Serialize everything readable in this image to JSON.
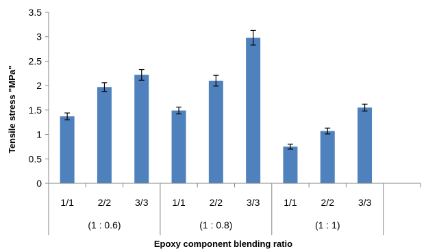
{
  "chart_data": {
    "type": "bar",
    "title": "",
    "xlabel": "Epoxy component blending ratio",
    "ylabel": "Tensile stress \"MPa\"",
    "ylim": [
      0,
      3.5
    ],
    "yticks": [
      "0",
      "0.5",
      "1",
      "1.5",
      "2",
      "2.5",
      "3",
      "3.5"
    ],
    "grid": false,
    "bar_color": "#4f81bd",
    "groups": [
      {
        "label": "(1 : 0.6)",
        "categories": [
          "1/1",
          "2/2",
          "3/3"
        ],
        "values": [
          1.37,
          1.97,
          2.22
        ],
        "errors": [
          0.07,
          0.09,
          0.11
        ]
      },
      {
        "label": "(1 : 0.8)",
        "categories": [
          "1/1",
          "2/2",
          "3/3"
        ],
        "values": [
          1.49,
          2.1,
          2.98
        ],
        "errors": [
          0.07,
          0.11,
          0.15
        ]
      },
      {
        "label": "(1 : 1)",
        "categories": [
          "1/1",
          "2/2",
          "3/3"
        ],
        "values": [
          0.75,
          1.07,
          1.55
        ],
        "errors": [
          0.05,
          0.06,
          0.07
        ]
      }
    ]
  }
}
